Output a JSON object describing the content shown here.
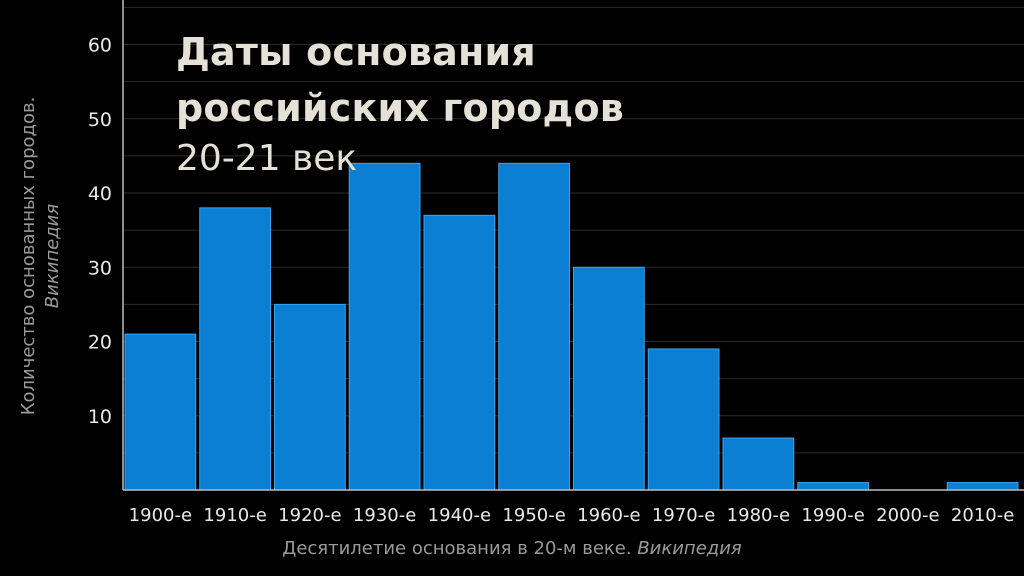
{
  "chart_data": {
    "type": "bar",
    "title": [
      "Даты основания",
      "российских городов"
    ],
    "subtitle": "20-21 век",
    "xlabel": "Десятилетие основания в 20-м веке.",
    "xlabel_source": "Википедия",
    "ylabel": "Количество основанных городов.",
    "ylabel_source": "Википедия",
    "categories": [
      "1900-е",
      "1910-е",
      "1920-е",
      "1930-е",
      "1940-е",
      "1950-е",
      "1960-е",
      "1970-е",
      "1980-е",
      "1990-е",
      "2000-е",
      "2010-е"
    ],
    "values": [
      21,
      38,
      25,
      44,
      37,
      44,
      30,
      19,
      7,
      1,
      0,
      1
    ],
    "yticks": [
      10,
      20,
      30,
      40,
      50,
      60
    ],
    "ylim": [
      0,
      66
    ],
    "grid": true,
    "legend": "none",
    "colors": {
      "background": "#000000",
      "bar": "#0a7fd4",
      "bar_edge": "#3aa3ee",
      "grid": "#2b2b2b",
      "axis": "#bdbdbd",
      "tick_text": "#e8e8e8",
      "label_text": "#9a9a9a",
      "title_text": "#e6e1d6"
    }
  }
}
